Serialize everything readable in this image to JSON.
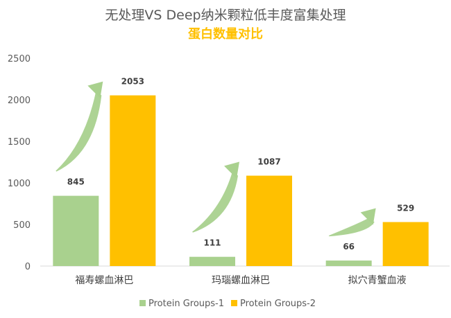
{
  "chart_data": {
    "type": "bar",
    "title": "无处理VS Deep纳米颗粒低丰度富集处理",
    "subtitle": "蛋白数量对比",
    "categories": [
      "福寿螺血淋巴",
      "玛瑙螺血淋巴",
      "拟穴青蟹血液"
    ],
    "series": [
      {
        "name": "Protein Groups-1",
        "values": [
          845,
          111,
          66
        ],
        "color": "#a9d18e"
      },
      {
        "name": "Protein Groups-2",
        "values": [
          2053,
          1087,
          529
        ],
        "color": "#ffc000"
      }
    ],
    "ylim": [
      0,
      2500
    ],
    "yticks": [
      0,
      500,
      1000,
      1500,
      2000,
      2500
    ],
    "grid": false,
    "legend": "bottom",
    "arrow_color": "#a9d18e"
  }
}
